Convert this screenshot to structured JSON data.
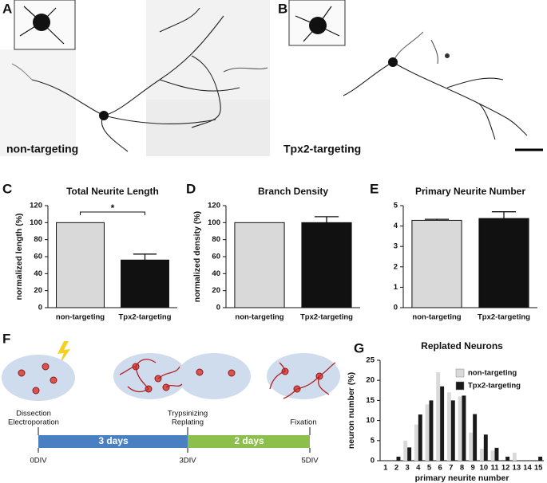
{
  "panels": [
    "A",
    "B",
    "C",
    "D",
    "E",
    "F",
    "G"
  ],
  "images": [
    {
      "caption": "non-targeting"
    },
    {
      "caption": "Tpx2-targeting"
    }
  ],
  "timeline": {
    "steps": [
      [
        "Dissection",
        "Electroporation"
      ],
      [
        "Trypsinizing",
        "Replating"
      ],
      [
        "Fixation"
      ]
    ],
    "periods": [
      "3 days",
      "2 days"
    ],
    "ticks": [
      "0DIV",
      "3DIV",
      "5DIV"
    ]
  },
  "chart_data": [
    {
      "type": "bar",
      "title": "Total Neurite Length",
      "ylabel": "normalized length (%)",
      "categories": [
        "non-targeting",
        "Tpx2-targeting"
      ],
      "values": [
        100,
        56
      ],
      "errors": [
        0,
        7
      ],
      "colors": [
        "#d9d9d9",
        "#111111"
      ],
      "ylim": [
        0,
        120
      ],
      "yticks": [
        0,
        20,
        40,
        60,
        80,
        100,
        120
      ],
      "annotation": "*"
    },
    {
      "type": "bar",
      "title": "Branch Density",
      "ylabel": "normalized density (%)",
      "categories": [
        "non-targeting",
        "Tpx2-targeting"
      ],
      "values": [
        100,
        100
      ],
      "errors": [
        0,
        7
      ],
      "colors": [
        "#d9d9d9",
        "#111111"
      ],
      "ylim": [
        0,
        120
      ],
      "yticks": [
        0,
        20,
        40,
        60,
        80,
        100,
        120
      ]
    },
    {
      "type": "bar",
      "title": "Primary Neurite Number",
      "categories": [
        "non-targeting",
        "Tpx2-targeting"
      ],
      "values": [
        4.28,
        4.37
      ],
      "errors": [
        0.05,
        0.33
      ],
      "colors": [
        "#d9d9d9",
        "#111111"
      ],
      "ylim": [
        0,
        5
      ],
      "yticks": [
        0,
        1,
        2,
        3,
        4,
        5
      ]
    },
    {
      "type": "grouped_bar",
      "title": "Replated Neurons",
      "xlabel": "primary neurite number",
      "ylabel": "neuron number (%)",
      "categories": [
        1,
        2,
        3,
        4,
        5,
        6,
        7,
        8,
        9,
        10,
        11,
        12,
        13,
        14,
        15
      ],
      "series": [
        {
          "name": "non-targeting",
          "color": "#d9d9d9",
          "values": [
            0,
            0,
            5,
            9,
            14,
            22,
            17,
            16,
            7,
            3,
            2.5,
            0,
            2,
            0,
            0
          ]
        },
        {
          "name": "Tpx2-targeting",
          "color": "#1a1a1a",
          "values": [
            0,
            1,
            3.3,
            11.5,
            15,
            18.5,
            15,
            16.2,
            11.6,
            6.5,
            3.2,
            1,
            0,
            0,
            1
          ]
        }
      ],
      "ylim": [
        0,
        25
      ],
      "yticks": [
        0,
        5,
        10,
        15,
        20,
        25
      ],
      "legend": "upper right"
    }
  ]
}
